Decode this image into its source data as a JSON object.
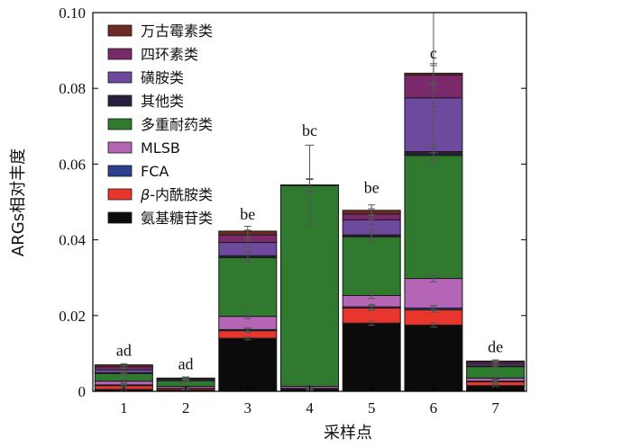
{
  "chart_data": {
    "type": "bar",
    "stacked": true,
    "xlabel": "采样点",
    "ylabel": "ARGs相对丰度",
    "ylim": [
      0,
      0.1
    ],
    "yticks": [
      0,
      0.02,
      0.04,
      0.06,
      0.08,
      0.1
    ],
    "ytick_labels": [
      "0",
      "0.02",
      "0.04",
      "0.06",
      "0.08",
      "0.10"
    ],
    "categories": [
      "1",
      "2",
      "3",
      "4",
      "5",
      "6",
      "7"
    ],
    "significance_labels": [
      "ad",
      "ad",
      "be",
      "bc",
      "be",
      "c",
      "de"
    ],
    "legend_position": "top-left",
    "series": [
      {
        "name": "氨基糖苷类",
        "color": "#0b0b0b",
        "values": [
          0.0005,
          0.0003,
          0.014,
          0.0005,
          0.018,
          0.0175,
          0.0015
        ]
      },
      {
        "name": "β-内酰胺类",
        "color": "#e8362d",
        "values": [
          0.001,
          0.0004,
          0.002,
          0.0002,
          0.004,
          0.004,
          0.001
        ]
      },
      {
        "name": "FCA",
        "color": "#2b3f8c",
        "values": [
          0.0002,
          0.0001,
          0.0003,
          0.0001,
          0.0003,
          0.0005,
          0.0002
        ]
      },
      {
        "name": "MLSB",
        "color": "#b565b5",
        "values": [
          0.001,
          0.0005,
          0.0035,
          0.0005,
          0.003,
          0.0078,
          0.0008
        ]
      },
      {
        "name": "多重耐药类",
        "color": "#2f7a2f",
        "values": [
          0.002,
          0.0015,
          0.0155,
          0.053,
          0.0155,
          0.0325,
          0.003
        ]
      },
      {
        "name": "其他类",
        "color": "#2a1f3d",
        "values": [
          0.0002,
          0.0001,
          0.0005,
          0.0002,
          0.0005,
          0.001,
          0.0002
        ]
      },
      {
        "name": "磺胺类",
        "color": "#6d4a9e",
        "values": [
          0.0008,
          0.0003,
          0.0035,
          0.0,
          0.004,
          0.0142,
          0.0005
        ]
      },
      {
        "name": "四环素类",
        "color": "#7a2a6a",
        "values": [
          0.0008,
          0.0002,
          0.002,
          0.0,
          0.0015,
          0.006,
          0.0005
        ]
      },
      {
        "name": "万古霉素类",
        "color": "#6e2a26",
        "values": [
          0.0005,
          0.0001,
          0.001,
          0.0,
          0.001,
          0.0005,
          0.0003
        ]
      }
    ]
  }
}
